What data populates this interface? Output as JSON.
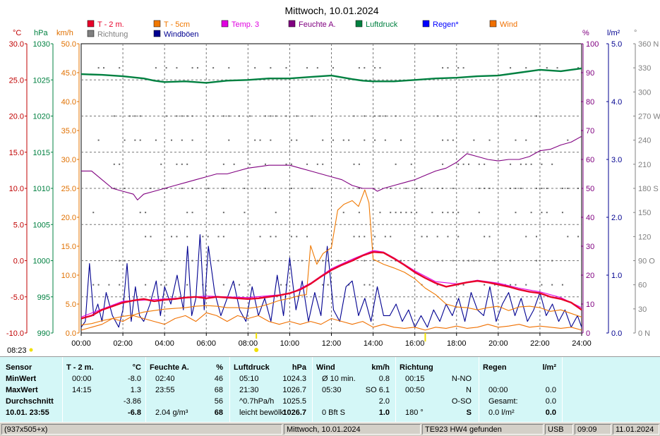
{
  "title": "Mittwoch, 10.01.2024",
  "axis_units": {
    "celsius": "°C",
    "hpa": "hPa",
    "kmh": "km/h",
    "percent": "%",
    "lm2": "l/m²",
    "degree": "°"
  },
  "legend": [
    {
      "label": "T - 2 m.",
      "color": "#e8002a"
    },
    {
      "label": "T - 5cm",
      "color": "#f07800"
    },
    {
      "label": "Temp. 3",
      "color": "#e000e0"
    },
    {
      "label": "Feuchte A.",
      "color": "#800080"
    },
    {
      "label": "Luftdruck",
      "color": "#008040"
    },
    {
      "label": "Regen*",
      "color": "#0000ff"
    },
    {
      "label": "Wind",
      "color": "#f07000"
    },
    {
      "label": "Richtung",
      "color": "#808080"
    },
    {
      "label": "Windböen",
      "color": "#000090"
    }
  ],
  "time_start": "08:23",
  "chart_data": {
    "type": "line",
    "x_ticks": [
      "00:00",
      "02:00",
      "04:00",
      "06:00",
      "08:00",
      "10:00",
      "12:00",
      "14:00",
      "16:00",
      "18:00",
      "20:00",
      "22:00",
      "24:00"
    ],
    "x_range_hours": [
      0,
      24
    ],
    "axes": {
      "temp_c": {
        "color": "#c00000",
        "ticks": [
          "30.0",
          "25.0",
          "20.0",
          "15.0",
          "10.0",
          "5.0",
          "0.0",
          "-5.0",
          "-10.0"
        ],
        "range": [
          -10,
          30
        ]
      },
      "pressure_hpa": {
        "color": "#008040",
        "ticks": [
          "1030",
          "1025",
          "1020",
          "1015",
          "1010",
          "1005",
          "1000",
          "995",
          "990"
        ],
        "range": [
          990,
          1030
        ]
      },
      "wind_kmh": {
        "color": "#e07000",
        "ticks": [
          "50.0",
          "45.0",
          "40.0",
          "35.0",
          "30.0",
          "25.0",
          "20.0",
          "15.0",
          "10.0",
          "5.0",
          "0.0"
        ],
        "range": [
          0,
          50
        ]
      },
      "humidity_pct": {
        "color": "#800080",
        "ticks": [
          "100",
          "90",
          "80",
          "70",
          "60",
          "50",
          "40",
          "30",
          "20",
          "10",
          "0"
        ],
        "range": [
          0,
          100
        ]
      },
      "rain_lm2": {
        "color": "#000090",
        "ticks": [
          "5.0",
          "4.0",
          "3.0",
          "2.0",
          "1.0",
          "0.0"
        ],
        "range": [
          0,
          5
        ]
      },
      "direction_deg": {
        "color": "#808080",
        "ticks": [
          "360 N",
          "330",
          "300",
          "270 W",
          "240",
          "210",
          "180 S",
          "150",
          "120",
          "90 O",
          "60",
          "30",
          "0 N"
        ],
        "range": [
          0,
          360
        ]
      }
    },
    "series": [
      {
        "name": "T - 2 m.",
        "axis": "temp_c",
        "color": "#e8002a",
        "x": [
          0,
          0.5,
          1,
          1.5,
          2,
          2.5,
          3,
          3.5,
          4,
          4.5,
          5,
          5.5,
          6,
          6.5,
          7,
          7.5,
          8,
          8.5,
          9,
          9.5,
          10,
          10.5,
          11,
          11.5,
          12,
          12.5,
          13,
          13.5,
          14,
          14.5,
          15,
          15.5,
          16,
          16.5,
          17,
          17.5,
          18,
          18.5,
          19,
          19.5,
          20,
          20.5,
          21,
          21.5,
          22,
          22.5,
          23,
          23.5,
          24
        ],
        "y": [
          -8,
          -7.6,
          -6.8,
          -6.3,
          -5.8,
          -5.5,
          -5.3,
          -5.6,
          -5.4,
          -5.3,
          -5.1,
          -5.0,
          -5.2,
          -5.0,
          -5.1,
          -5.2,
          -5.3,
          -5.2,
          -5.0,
          -4.8,
          -4.5,
          -4.0,
          -3.2,
          -2.2,
          -1.3,
          -0.6,
          0.0,
          0.7,
          1.2,
          1.1,
          0.3,
          -0.6,
          -1.6,
          -2.4,
          -3.1,
          -3.6,
          -3.3,
          -3.0,
          -2.8,
          -3.0,
          -3.3,
          -3.6,
          -4.0,
          -4.3,
          -4.5,
          -5.0,
          -5.3,
          -5.8,
          -6.8
        ]
      },
      {
        "name": "Temp. 3",
        "axis": "temp_c",
        "color": "#e000e0",
        "x": [
          0,
          2,
          4,
          6,
          8,
          10,
          11,
          12,
          13,
          13.5,
          14,
          14.5,
          15,
          16,
          17,
          18,
          19,
          20,
          21,
          22,
          23,
          24
        ],
        "y": [
          -7.8,
          -5.6,
          -5.3,
          -4.9,
          -5.1,
          -4.6,
          -3.1,
          -1.1,
          0.2,
          0.8,
          1.4,
          1.2,
          0.4,
          -1.4,
          -2.9,
          -3.2,
          -2.7,
          -3.1,
          -3.8,
          -4.3,
          -5.1,
          -6.5
        ]
      },
      {
        "name": "T - 5cm",
        "axis": "temp_c",
        "color": "#f07800",
        "x": [
          0,
          0.5,
          1,
          1.5,
          2,
          2.5,
          3,
          3.5,
          4,
          4.5,
          5,
          5.5,
          6,
          6.5,
          7,
          7.5,
          8,
          8.5,
          9,
          9.5,
          10,
          10.5,
          10.8,
          11,
          11.3,
          11.6,
          12,
          12.3,
          12.6,
          13,
          13.3,
          13.6,
          13.8,
          14,
          14.5,
          15,
          15.5,
          16,
          16.5,
          17,
          17.5,
          18,
          18.5,
          19,
          19.5,
          20,
          20.5,
          21,
          21.5,
          22,
          22.5,
          23,
          23.5,
          24
        ],
        "y": [
          -8.9,
          -8.7,
          -8.3,
          -8.0,
          -7.7,
          -7.5,
          -7.1,
          -6.9,
          -6.7,
          -6.6,
          -6.5,
          -6.3,
          -6.2,
          -6.3,
          -6.5,
          -6.5,
          -6.6,
          -6.4,
          -6.0,
          -5.5,
          -5.2,
          -4.8,
          -4.7,
          2.1,
          -0.5,
          1.0,
          1.8,
          7.0,
          7.8,
          8.3,
          7.5,
          9.8,
          8.0,
          0.2,
          -0.5,
          -1.0,
          -1.6,
          -2.5,
          -3.8,
          -4.7,
          -6.0,
          -6.4,
          -6.5,
          -6.8,
          -6.5,
          -6.3,
          -6.9,
          -6.4,
          -6.3,
          -6.5,
          -7.0,
          -6.8,
          -7.3,
          -7.8
        ]
      },
      {
        "name": "Feuchte A.",
        "axis": "humidity_pct",
        "color": "#800080",
        "x": [
          0,
          0.5,
          1,
          1.5,
          2,
          2.5,
          2.7,
          3,
          3.5,
          4,
          4.5,
          5,
          5.5,
          6,
          6.5,
          7,
          7.5,
          8,
          8.5,
          9,
          9.5,
          10,
          10.5,
          11,
          11.5,
          12,
          12.5,
          13,
          13.5,
          14,
          14.2,
          14.5,
          15,
          15.5,
          16,
          16.5,
          17,
          17.5,
          18,
          18.5,
          19,
          19.5,
          20,
          20.5,
          21,
          21.5,
          22,
          22.5,
          23,
          23.5,
          24
        ],
        "y": [
          56,
          56,
          53,
          50,
          49,
          48,
          46,
          48,
          49,
          50,
          51,
          52,
          53,
          54,
          55,
          55,
          56,
          57,
          57.5,
          58,
          58,
          58,
          57,
          56,
          55,
          54,
          53,
          51,
          50,
          50,
          49,
          50,
          51,
          52,
          53,
          54.5,
          56,
          57,
          59,
          62,
          61,
          60,
          59.5,
          60,
          60,
          61,
          63,
          63.5,
          65,
          66,
          68
        ]
      },
      {
        "name": "Luftdruck",
        "axis": "pressure_hpa",
        "color": "#008040",
        "x": [
          0,
          1,
          2,
          3,
          3.5,
          4,
          5,
          6,
          7,
          8,
          9,
          10,
          11,
          12,
          13,
          13.5,
          14,
          15,
          16,
          17,
          18,
          19,
          20,
          21,
          22,
          23,
          24
        ],
        "y": [
          1025.8,
          1025.7,
          1025.5,
          1025.2,
          1024.9,
          1024.7,
          1024.8,
          1024.6,
          1024.9,
          1025.0,
          1025.2,
          1025.2,
          1025.4,
          1025.6,
          1025.1,
          1024.9,
          1024.8,
          1024.8,
          1025.0,
          1025.2,
          1025.3,
          1025.5,
          1025.6,
          1026.0,
          1026.4,
          1026.2,
          1026.6
        ]
      },
      {
        "name": "Windböen",
        "axis": "wind_kmh",
        "color": "#000090",
        "x": [
          0,
          0.2,
          0.4,
          0.6,
          0.8,
          1.0,
          1.2,
          1.5,
          1.8,
          2.0,
          2.2,
          2.4,
          2.6,
          2.8,
          3.0,
          3.3,
          3.6,
          3.8,
          4.0,
          4.3,
          4.6,
          4.9,
          5.1,
          5.3,
          5.5,
          5.7,
          5.9,
          6.1,
          6.4,
          6.7,
          7.0,
          7.3,
          7.6,
          7.9,
          8.2,
          8.5,
          8.8,
          9.1,
          9.4,
          9.7,
          10.0,
          10.3,
          10.6,
          10.9,
          11.2,
          11.5,
          11.8,
          12.1,
          12.4,
          12.7,
          13.0,
          13.3,
          13.6,
          13.9,
          14.2,
          14.5,
          14.8,
          15.1,
          15.4,
          15.7,
          16.0,
          16.3,
          16.6,
          16.9,
          17.2,
          17.5,
          17.8,
          18.1,
          18.4,
          18.7,
          19.0,
          19.3,
          19.6,
          19.9,
          20.2,
          20.5,
          20.8,
          21.1,
          21.4,
          21.7,
          22.0,
          22.3,
          22.6,
          22.9,
          23.2,
          23.5,
          23.8,
          24.0
        ],
        "y": [
          1,
          2,
          12,
          3,
          5,
          2,
          7,
          3,
          1,
          4,
          12,
          2,
          8,
          3,
          2,
          5,
          9,
          3,
          8,
          5,
          10,
          4,
          15,
          3,
          6,
          17,
          4,
          15,
          7,
          3,
          6,
          9,
          4,
          2,
          8,
          3,
          6,
          2,
          10,
          3,
          13,
          4,
          9,
          2,
          7,
          3,
          15,
          4,
          2,
          8,
          9,
          3,
          6,
          2,
          8,
          3,
          3,
          5,
          2,
          4,
          1,
          3,
          1,
          4,
          2,
          5,
          3,
          6,
          2,
          7,
          4,
          3,
          8,
          2,
          5,
          7,
          3,
          6,
          2,
          4,
          7,
          3,
          5,
          2,
          4,
          1,
          3,
          1
        ]
      },
      {
        "name": "Wind",
        "axis": "wind_kmh",
        "color": "#f07000",
        "x": [
          0,
          0.5,
          1,
          1.5,
          2,
          2.5,
          3,
          3.5,
          4,
          4.5,
          5,
          5.5,
          6,
          6.5,
          7,
          7.5,
          8,
          8.5,
          9,
          9.5,
          10,
          10.5,
          11,
          11.5,
          12,
          12.5,
          13,
          13.5,
          14,
          14.5,
          15,
          15.5,
          16,
          16.5,
          17,
          17.5,
          18,
          18.5,
          19,
          19.5,
          20,
          20.5,
          21,
          21.5,
          22,
          22.5,
          23,
          23.5,
          24
        ],
        "y": [
          0.5,
          1,
          1.5,
          2.5,
          2,
          3,
          2.5,
          2,
          1.5,
          2.5,
          3,
          2,
          3.5,
          3,
          2,
          3,
          2.5,
          3,
          2,
          1.5,
          2,
          1.5,
          2,
          1.5,
          2.5,
          2,
          1.5,
          2,
          1,
          1.5,
          1,
          0.8,
          1,
          0.5,
          1,
          0.8,
          1.2,
          0.8,
          1,
          1.5,
          1,
          1.2,
          1.5,
          1,
          1.2,
          1,
          0.8,
          1,
          0.5
        ]
      }
    ],
    "direction_rows_deg": [
      330,
      270,
      240,
      210,
      180,
      150,
      120,
      90,
      60
    ],
    "day_markers": [
      "08:23",
      "16:30"
    ]
  },
  "table": {
    "sensor": {
      "header": "Sensor",
      "rows": [
        "MinWert",
        "MaxWert",
        "Durchschnitt",
        "10.01.  23:55"
      ]
    },
    "temp": {
      "header": "T  -  2 m.",
      "unit": "°C",
      "rows": [
        [
          "00:00",
          "-8.0"
        ],
        [
          "14:15",
          "1.3"
        ],
        [
          "",
          "-3.86"
        ],
        [
          "",
          "-6.8"
        ]
      ]
    },
    "humidity": {
      "header": "Feuchte A.",
      "unit": "%",
      "rows": [
        [
          "02:40",
          "46"
        ],
        [
          "23:55",
          "68"
        ],
        [
          "",
          "56"
        ],
        [
          "2.04 g/m³",
          "68"
        ]
      ]
    },
    "pressure": {
      "header": "Luftdruck",
      "unit": "hPa",
      "rows": [
        [
          "05:10",
          "1024.3"
        ],
        [
          "21:30",
          "1026.7"
        ],
        [
          "^0.7hPa/h",
          "1025.5"
        ],
        [
          "leicht bewölkt",
          "1026.7"
        ]
      ]
    },
    "wind": {
      "header": "Wind",
      "unit": "km/h",
      "rows": [
        [
          "Ø 10 min.",
          "0.8"
        ],
        [
          "05:30",
          "SO  6.1"
        ],
        [
          "",
          "2.0"
        ],
        [
          "0 Bft  S",
          "1.0"
        ]
      ]
    },
    "direction": {
      "header": "Richtung",
      "rows": [
        [
          "00:15",
          "N-NO"
        ],
        [
          "00:50",
          "N"
        ],
        [
          "",
          "O-SO"
        ],
        [
          "180 °",
          "S"
        ]
      ]
    },
    "rain": {
      "header": "Regen",
      "unit": "l/m²",
      "rows": [
        [
          "",
          ""
        ],
        [
          "00:00",
          "0.0"
        ],
        [
          "Gesamt:",
          "0.0"
        ],
        [
          "0.0 l/m²",
          "0.0"
        ]
      ]
    }
  },
  "statusbar": [
    "(937x505+x)",
    "Mittwoch, 10.01.2024",
    "TE923 HW4 gefunden",
    "USB",
    "09:09",
    "11.01.2024"
  ]
}
